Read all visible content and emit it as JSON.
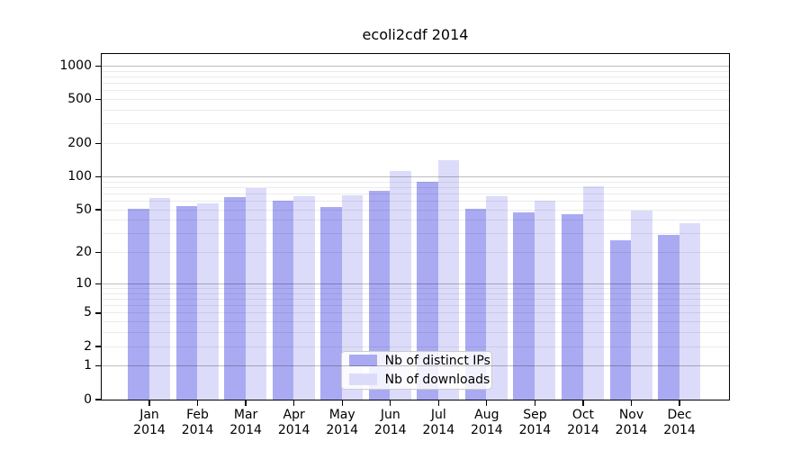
{
  "chart_data": {
    "type": "bar",
    "title": "ecoli2cdf 2014",
    "year": "2014",
    "categories": [
      "Jan",
      "Feb",
      "Mar",
      "Apr",
      "May",
      "Jun",
      "Jul",
      "Aug",
      "Sep",
      "Oct",
      "Nov",
      "Dec"
    ],
    "series": [
      {
        "name": "Nb of distinct IPs",
        "color": "#aaaaf3",
        "values": [
          51,
          54,
          65,
          60,
          53,
          74,
          90,
          51,
          47,
          45,
          26,
          29
        ]
      },
      {
        "name": "Nb of downloads",
        "color": "#dcdcfa",
        "values": [
          63,
          57,
          78,
          66,
          67,
          111,
          140,
          66,
          60,
          82,
          49,
          37
        ]
      }
    ],
    "scale": "log1p",
    "ylim": [
      0,
      1283
    ],
    "yticks": [
      0,
      1,
      2,
      5,
      10,
      20,
      50,
      100,
      200,
      500,
      1000
    ],
    "grid_major": [
      1,
      10,
      100,
      1000
    ],
    "grid_minor": [
      2,
      3,
      4,
      5,
      6,
      7,
      8,
      9,
      20,
      30,
      40,
      50,
      60,
      70,
      80,
      90,
      200,
      300,
      400,
      500,
      600,
      700,
      800,
      900
    ],
    "grid_color_major": "rgba(0,0,0,0.26)",
    "grid_color_minor": "rgba(0,0,0,0.08)",
    "legend_position": "bottom-center-inside",
    "bar_color_ips": "#aaaaf3",
    "bar_color_downloads": "#dcdcfa"
  }
}
